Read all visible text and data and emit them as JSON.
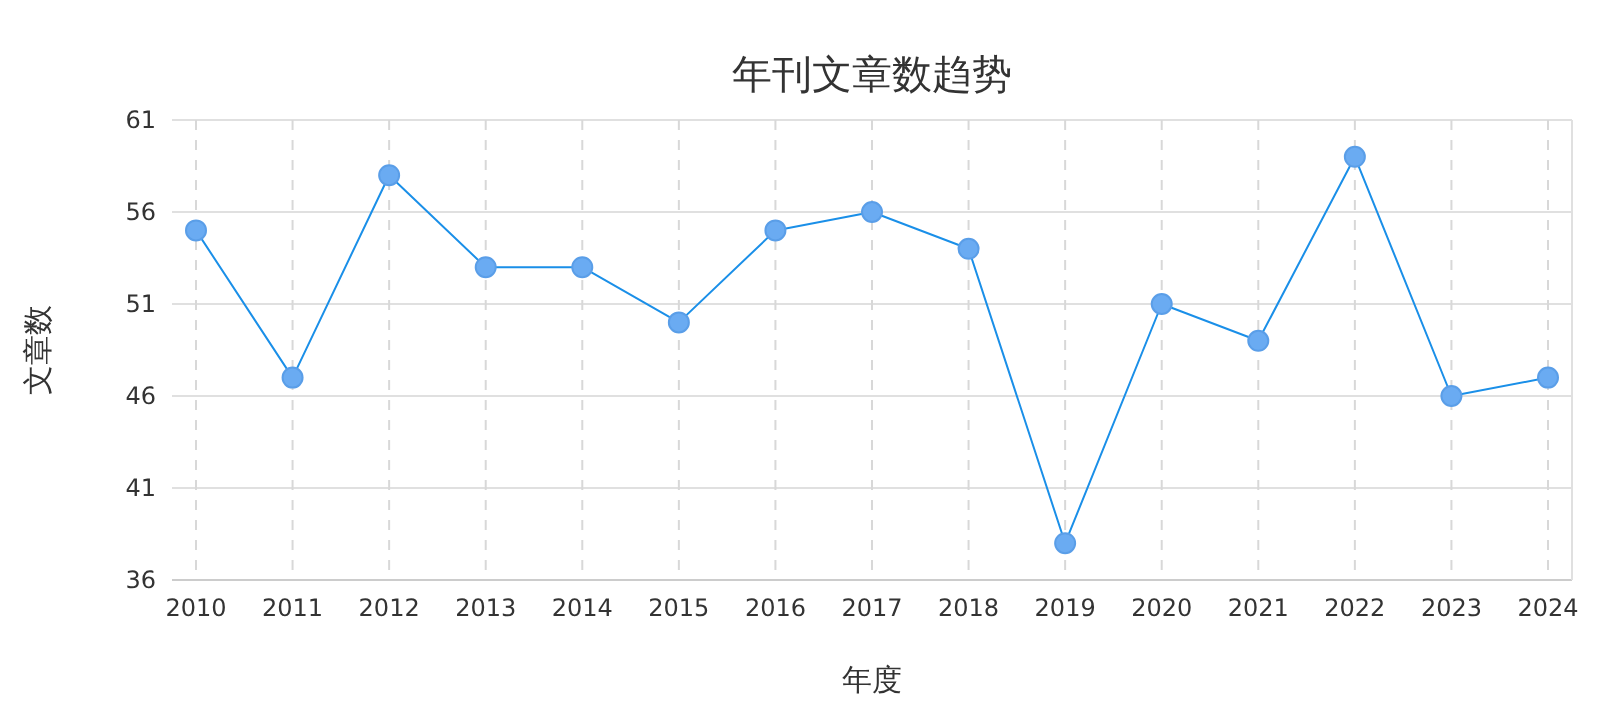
{
  "chart_data": {
    "type": "line",
    "title": "年刊文章数趋势",
    "xlabel": "年度",
    "ylabel": "文章数",
    "categories": [
      "2010",
      "2011",
      "2012",
      "2013",
      "2014",
      "2015",
      "2016",
      "2017",
      "2018",
      "2019",
      "2020",
      "2021",
      "2022",
      "2023",
      "2024"
    ],
    "series": [
      {
        "color": "#1a8fe8",
        "values": [
          55,
          47,
          58,
          53,
          53,
          50,
          55,
          56,
          54,
          38,
          51,
          49,
          59,
          46,
          47
        ]
      }
    ],
    "ylim": [
      36,
      61
    ],
    "yticks": [
      36,
      41,
      46,
      51,
      56,
      61
    ],
    "grid": true,
    "marker": "circle",
    "line_style": "solid"
  }
}
